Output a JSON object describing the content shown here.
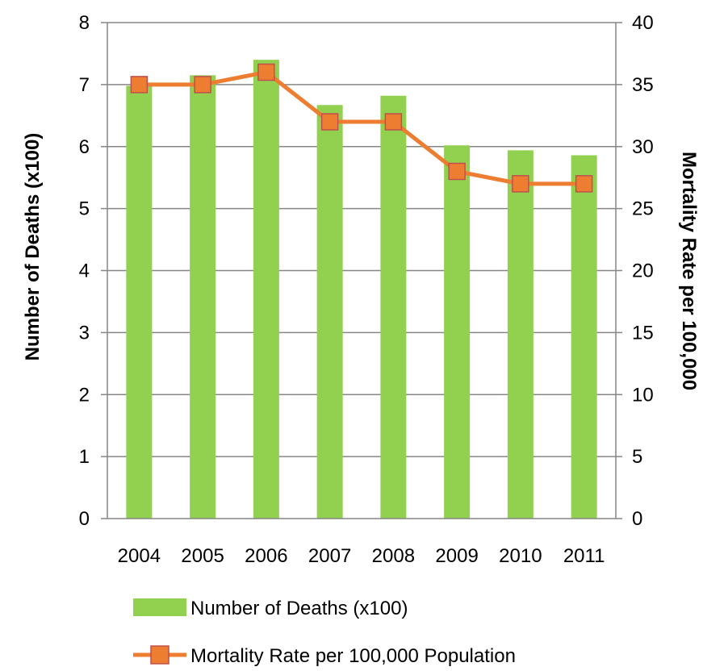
{
  "chart_data": {
    "type": "bar+line",
    "categories": [
      "2004",
      "2005",
      "2006",
      "2007",
      "2008",
      "2009",
      "2010",
      "2011"
    ],
    "series": [
      {
        "name": "Number of Deaths (x100)",
        "type": "bar",
        "axis": "left",
        "values": [
          6.98,
          7.15,
          7.4,
          6.67,
          6.82,
          6.02,
          5.94,
          5.86
        ],
        "color": "#92d050"
      },
      {
        "name": "Mortality Rate per 100,000 Population",
        "type": "line",
        "axis": "right",
        "values": [
          35,
          35,
          36,
          32,
          32,
          28,
          27,
          27
        ],
        "color": "#ed7d31",
        "marker": "square"
      }
    ],
    "ylabel": "Number of Deaths (x100)",
    "ylabel_right": "Mortality Rate per 100,000",
    "ylim": [
      0,
      8
    ],
    "ylim_right": [
      0,
      40
    ],
    "yticks": [
      "0",
      "1",
      "2",
      "3",
      "4",
      "5",
      "6",
      "7",
      "8"
    ],
    "yticks_right": [
      "0",
      "5",
      "10",
      "15",
      "20",
      "25",
      "30",
      "35",
      "40"
    ],
    "grid": true,
    "legend": [
      "Number of Deaths (x100)",
      "Mortality Rate per 100,000 Population"
    ],
    "legend_position": "bottom"
  }
}
